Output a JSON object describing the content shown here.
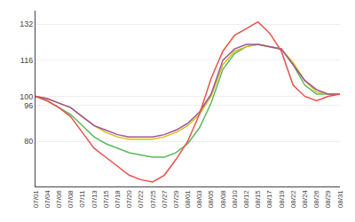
{
  "chart_data": {
    "type": "line",
    "categories": [
      "07/01",
      "07/04",
      "07/06",
      "07/08",
      "07/11",
      "07/13",
      "07/15",
      "07/18",
      "07/20",
      "07/22",
      "07/25",
      "07/27",
      "07/29",
      "08/01",
      "08/03",
      "08/05",
      "08/08",
      "08/10",
      "08/12",
      "08/15",
      "08/17",
      "08/19",
      "08/22",
      "08/24",
      "08/26",
      "08/29",
      "08/31"
    ],
    "series": [
      {
        "color": "#5cb85c",
        "values": [
          100,
          98,
          95,
          92,
          87,
          82,
          79,
          77,
          75,
          74,
          73,
          73,
          75,
          79,
          86,
          97,
          112,
          119,
          122,
          123,
          122,
          121,
          114,
          105,
          101,
          101,
          101
        ]
      },
      {
        "color": "#d4c010",
        "values": [
          100,
          99,
          97,
          95,
          91,
          87,
          84,
          82,
          81,
          81,
          81,
          82,
          84,
          87,
          92,
          100,
          114,
          120,
          122,
          123,
          122,
          121,
          115,
          107,
          102,
          101,
          101
        ]
      },
      {
        "color": "#a050a0",
        "values": [
          100,
          99,
          97,
          95,
          91,
          87,
          85,
          83,
          82,
          82,
          82,
          83,
          85,
          88,
          93,
          101,
          116,
          121,
          123,
          123,
          122,
          121,
          114,
          107,
          103,
          101,
          101
        ]
      },
      {
        "color": "#e8534a",
        "values": [
          100,
          98,
          95,
          91,
          84,
          77,
          73,
          69,
          65,
          63,
          62,
          65,
          72,
          80,
          92,
          108,
          120,
          127,
          130,
          133,
          128,
          120,
          105,
          100,
          98,
          100,
          101
        ]
      }
    ],
    "ylim": [
      60,
      138
    ],
    "yticks": [
      80,
      96,
      100,
      116,
      132
    ],
    "grid": true
  }
}
